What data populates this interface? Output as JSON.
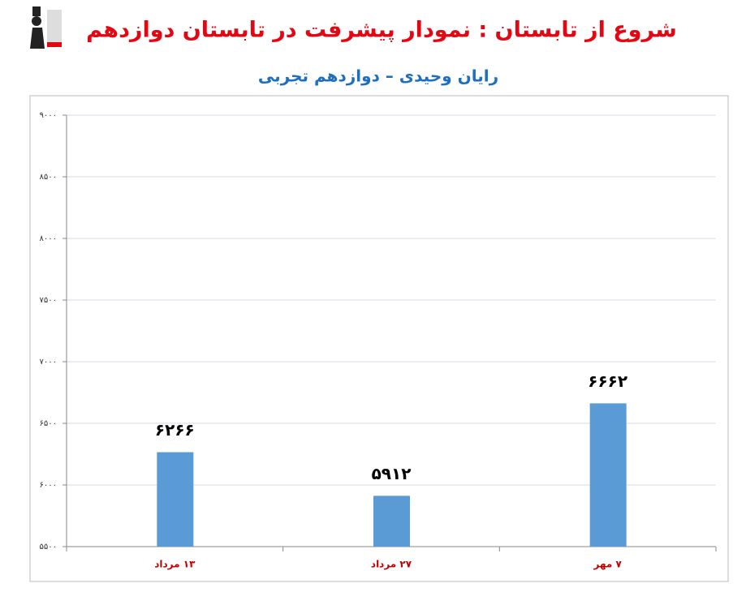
{
  "chart_data": {
    "type": "bar",
    "title": "شروع از تابستان : نمودار پیشرفت در تابستان دوازدهم",
    "subtitle": "رایان وحیدی – دوازدهم تجربی",
    "categories": [
      "۱۳ مرداد",
      "۲۷ مرداد",
      "۷ مهر"
    ],
    "values": [
      6266,
      5912,
      6662
    ],
    "value_labels": [
      "۶۲۶۶",
      "۵۹۱۲",
      "۶۶۶۲"
    ],
    "color": "#5b9bd5",
    "ylim": [
      5500,
      9000
    ],
    "yticks": [
      {
        "value": 5500,
        "label": "۵۵۰۰"
      },
      {
        "value": 6000,
        "label": "۶۰۰۰"
      },
      {
        "value": 6500,
        "label": "۶۵۰۰"
      },
      {
        "value": 7000,
        "label": "۷۰۰۰"
      },
      {
        "value": 7500,
        "label": "۷۵۰۰"
      },
      {
        "value": 8000,
        "label": "۸۰۰۰"
      },
      {
        "value": 8500,
        "label": "۸۵۰۰"
      },
      {
        "value": 9000,
        "label": "۹۰۰۰"
      }
    ],
    "grid": true
  }
}
